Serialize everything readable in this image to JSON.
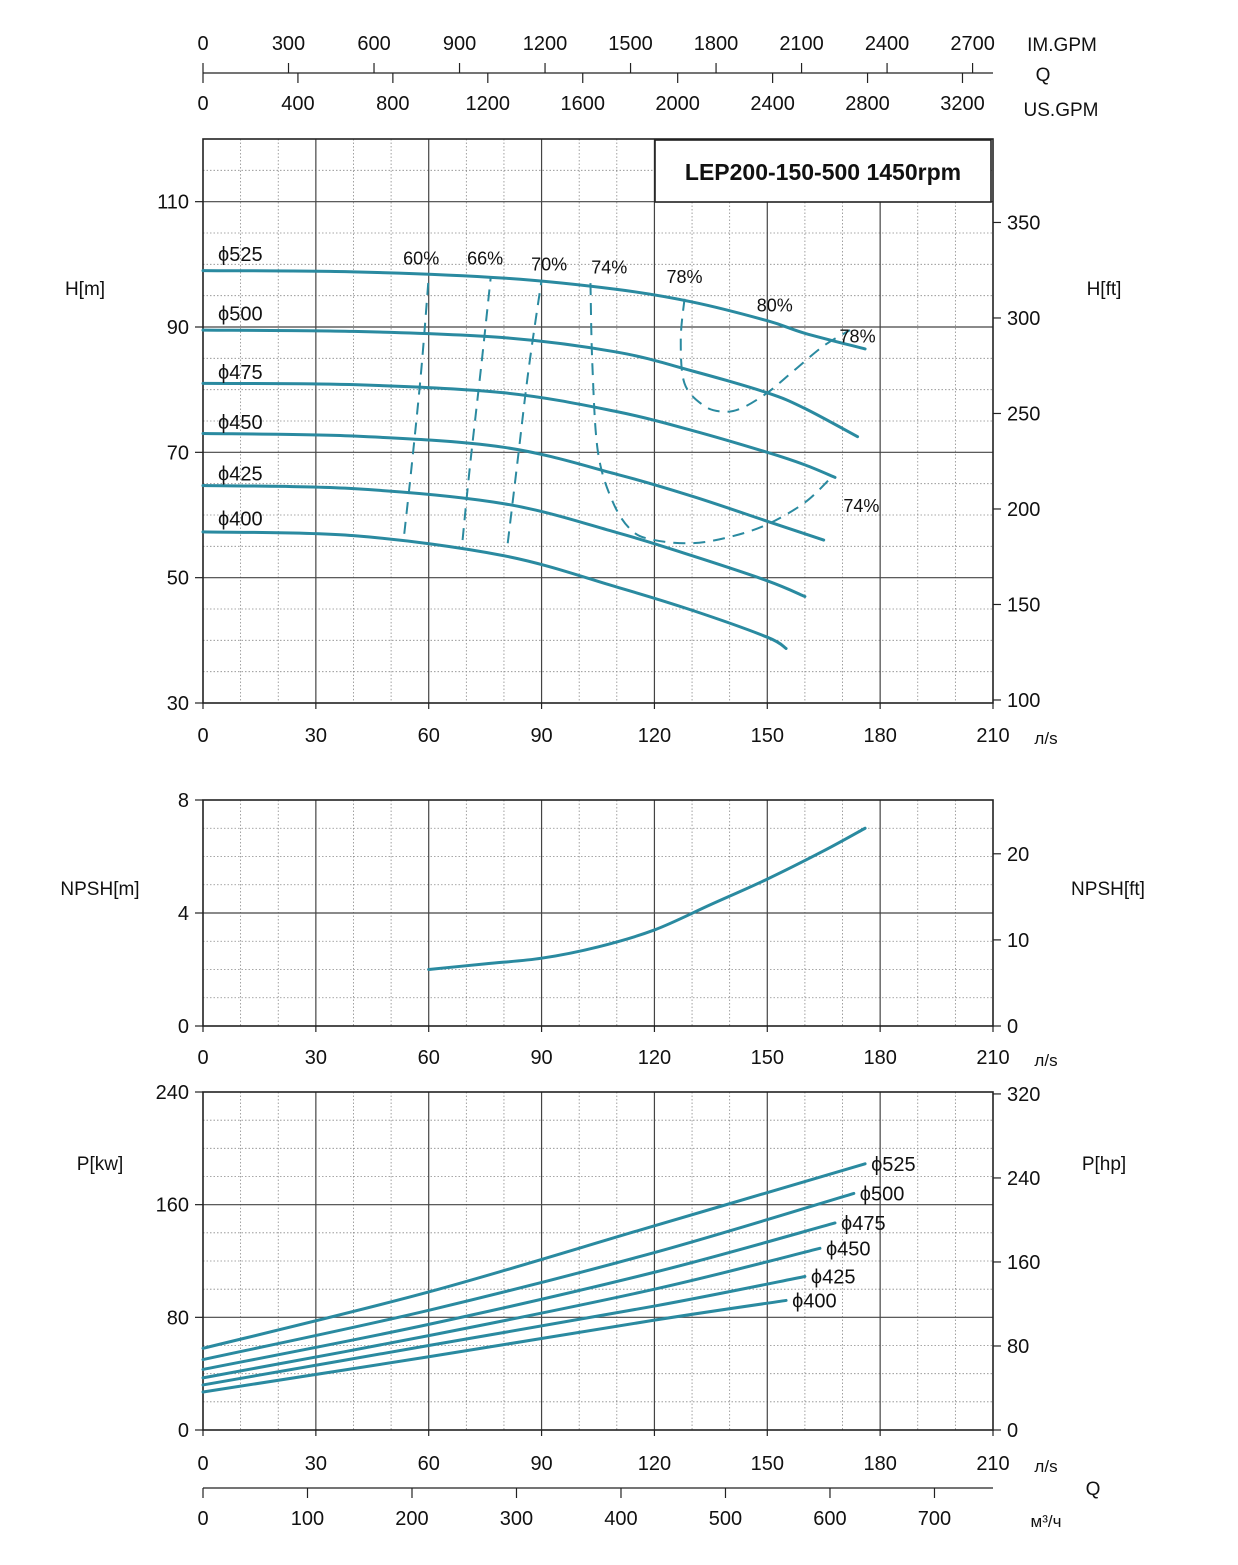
{
  "page_title": "LEP200-150-500 1450rpm",
  "colors": {
    "curve": "#2a8aa0",
    "frame": "#222222",
    "grid_major": "#444444",
    "grid_minor": "#8a8a8a"
  },
  "top_axes": {
    "im_gpm": {
      "label": "IM.GPM",
      "ticks": [
        "0",
        "300",
        "600",
        "900",
        "1200",
        "1500",
        "1800",
        "2100",
        "2400",
        "2700"
      ],
      "values": [
        0,
        300,
        600,
        900,
        1200,
        1500,
        1800,
        2100,
        2400,
        2700
      ]
    },
    "q_label": "Q",
    "us_gpm": {
      "label": "US.GPM",
      "ticks": [
        "0",
        "400",
        "800",
        "1200",
        "1600",
        "2000",
        "2400",
        "2800",
        "3200"
      ],
      "values": [
        0,
        400,
        800,
        1200,
        1600,
        2000,
        2400,
        2800,
        3200
      ]
    }
  },
  "bottom_axis": {
    "m3h_label": "м³/ч",
    "q_label": "Q",
    "m3h_ticks": [
      "0",
      "100",
      "200",
      "300",
      "400",
      "500",
      "600",
      "700"
    ],
    "m3h_values": [
      0,
      100,
      200,
      300,
      400,
      500,
      600,
      700
    ]
  },
  "chart_data": [
    {
      "id": "head",
      "type": "line",
      "title": "LEP200-150-500 1450rpm",
      "xlabel": "л/s",
      "ylabel": "H[m]",
      "ylabel_right": "H[ft]",
      "xlim": [
        0,
        210
      ],
      "ylim": [
        30,
        120
      ],
      "x_ticks": [
        "0",
        "30",
        "60",
        "90",
        "120",
        "150",
        "180",
        "210"
      ],
      "x_tick_values": [
        0,
        30,
        60,
        90,
        120,
        150,
        180,
        210
      ],
      "y_ticks": [
        "30",
        "50",
        "70",
        "90",
        "110"
      ],
      "y_tick_values": [
        30,
        50,
        70,
        90,
        110
      ],
      "y_right_ticks": [
        "100",
        "150",
        "200",
        "250",
        "300",
        "350"
      ],
      "y_right_tick_values": [
        100,
        150,
        200,
        250,
        300,
        350
      ],
      "series": [
        {
          "name": "ϕ525",
          "x": [
            0,
            40,
            80,
            110,
            130,
            150,
            160,
            176
          ],
          "y": [
            99,
            98.8,
            97.8,
            96,
            94,
            91,
            89,
            86.5
          ]
        },
        {
          "name": "ϕ500",
          "x": [
            0,
            40,
            80,
            110,
            130,
            150,
            160,
            174
          ],
          "y": [
            89.5,
            89.3,
            88.3,
            86,
            83,
            79.5,
            77,
            72.5
          ]
        },
        {
          "name": "ϕ475",
          "x": [
            0,
            40,
            80,
            110,
            130,
            150,
            160,
            168
          ],
          "y": [
            81,
            80.8,
            79.5,
            76.5,
            73.5,
            70,
            68,
            66
          ]
        },
        {
          "name": "ϕ450",
          "x": [
            0,
            40,
            80,
            110,
            130,
            150,
            160,
            165
          ],
          "y": [
            73,
            72.6,
            70.8,
            66.5,
            63,
            59,
            57,
            56
          ]
        },
        {
          "name": "ϕ425",
          "x": [
            0,
            40,
            80,
            110,
            130,
            150,
            160
          ],
          "y": [
            64.7,
            64.2,
            61.8,
            57.2,
            53.5,
            49.5,
            47
          ]
        },
        {
          "name": "ϕ400",
          "x": [
            0,
            40,
            80,
            110,
            130,
            150,
            155
          ],
          "y": [
            57.3,
            56.7,
            53.5,
            48.5,
            44.8,
            40.5,
            38.7
          ]
        }
      ],
      "efficiency_curves": [
        {
          "label": "60%",
          "x": [
            53.5,
            55.5,
            58,
            60
          ],
          "y": [
            57,
            68,
            83,
            98
          ]
        },
        {
          "label": "66%",
          "x": [
            69,
            71,
            74,
            76.5
          ],
          "y": [
            56,
            68,
            84,
            98
          ]
        },
        {
          "label": "70%",
          "x": [
            81,
            83.5,
            86.5,
            90
          ],
          "y": [
            55.5,
            68,
            83,
            97.5
          ]
        },
        {
          "label": "74%",
          "x": [
            103,
            103.5,
            105,
            109,
            114,
            120,
            130,
            140,
            150,
            160,
            167
          ],
          "y": [
            97,
            84,
            70,
            62,
            57.5,
            56,
            55.5,
            56.5,
            58.5,
            62,
            66
          ]
        },
        {
          "label": "78%",
          "x": [
            128,
            127,
            128,
            133,
            138,
            143,
            150,
            157,
            165,
            172
          ],
          "y": [
            94.5,
            88,
            81,
            77.5,
            76.5,
            77,
            79.5,
            83,
            87,
            89.5
          ]
        }
      ],
      "efficiency_labels": [
        {
          "text": "60%",
          "x": 58,
          "y": 100
        },
        {
          "text": "66%",
          "x": 75,
          "y": 100
        },
        {
          "text": "70%",
          "x": 92,
          "y": 99
        },
        {
          "text": "74%",
          "x": 108,
          "y": 98.5
        },
        {
          "text": "78%",
          "x": 128,
          "y": 97
        },
        {
          "text": "80%",
          "x": 152,
          "y": 92.5
        },
        {
          "text": "78%",
          "x": 174,
          "y": 87.5
        },
        {
          "text": "74%",
          "x": 175,
          "y": 60.5
        }
      ],
      "curve_labels": [
        {
          "text": "ϕ525",
          "x": 4,
          "y": 100.5
        },
        {
          "text": "ϕ500",
          "x": 4,
          "y": 91
        },
        {
          "text": "ϕ475",
          "x": 4,
          "y": 81.7
        },
        {
          "text": "ϕ450",
          "x": 4,
          "y": 73.7
        },
        {
          "text": "ϕ425",
          "x": 4,
          "y": 65.5
        },
        {
          "text": "ϕ400",
          "x": 4,
          "y": 58.3
        }
      ]
    },
    {
      "id": "npsh",
      "type": "line",
      "xlabel": "л/s",
      "ylabel": "NPSH[m]",
      "ylabel_right": "NPSH[ft]",
      "xlim": [
        0,
        210
      ],
      "ylim": [
        0,
        8
      ],
      "x_ticks": [
        "0",
        "30",
        "60",
        "90",
        "120",
        "150",
        "180",
        "210"
      ],
      "x_tick_values": [
        0,
        30,
        60,
        90,
        120,
        150,
        180,
        210
      ],
      "y_ticks": [
        "0",
        "4",
        "8"
      ],
      "y_tick_values": [
        0,
        4,
        8
      ],
      "y_right_ticks": [
        "0",
        "10",
        "20"
      ],
      "y_right_tick_values": [
        0,
        10,
        20
      ],
      "series": [
        {
          "name": "NPSH",
          "x": [
            60,
            75,
            90,
            105,
            120,
            135,
            150,
            165,
            176
          ],
          "y": [
            2.0,
            2.2,
            2.4,
            2.8,
            3.4,
            4.3,
            5.2,
            6.2,
            7.0
          ]
        }
      ]
    },
    {
      "id": "power",
      "type": "line",
      "xlabel": "л/s",
      "ylabel": "P[kw]",
      "ylabel_right": "P[hp]",
      "xlim": [
        0,
        210
      ],
      "ylim": [
        0,
        240
      ],
      "x_ticks": [
        "0",
        "30",
        "60",
        "90",
        "120",
        "150",
        "180",
        "210"
      ],
      "x_tick_values": [
        0,
        30,
        60,
        90,
        120,
        150,
        180,
        210
      ],
      "y_ticks": [
        "0",
        "80",
        "160",
        "240"
      ],
      "y_tick_values": [
        0,
        80,
        160,
        240
      ],
      "y_right_ticks": [
        "0",
        "80",
        "160",
        "240",
        "320"
      ],
      "y_right_tick_values": [
        0,
        80,
        160,
        240,
        320
      ],
      "series": [
        {
          "name": "ϕ525",
          "x": [
            0,
            60,
            120,
            176
          ],
          "y": [
            58,
            98,
            145,
            189
          ]
        },
        {
          "name": "ϕ500",
          "x": [
            0,
            60,
            120,
            173
          ],
          "y": [
            50,
            85,
            126,
            168
          ]
        },
        {
          "name": "ϕ475",
          "x": [
            0,
            60,
            120,
            168
          ],
          "y": [
            43,
            75,
            112,
            147
          ]
        },
        {
          "name": "ϕ450",
          "x": [
            0,
            60,
            120,
            164
          ],
          "y": [
            37,
            67,
            100,
            129
          ]
        },
        {
          "name": "ϕ425",
          "x": [
            0,
            60,
            120,
            160
          ],
          "y": [
            32,
            60,
            88,
            109
          ]
        },
        {
          "name": "ϕ400",
          "x": [
            0,
            60,
            120,
            155
          ],
          "y": [
            27,
            52,
            78,
            92
          ]
        }
      ]
    }
  ]
}
